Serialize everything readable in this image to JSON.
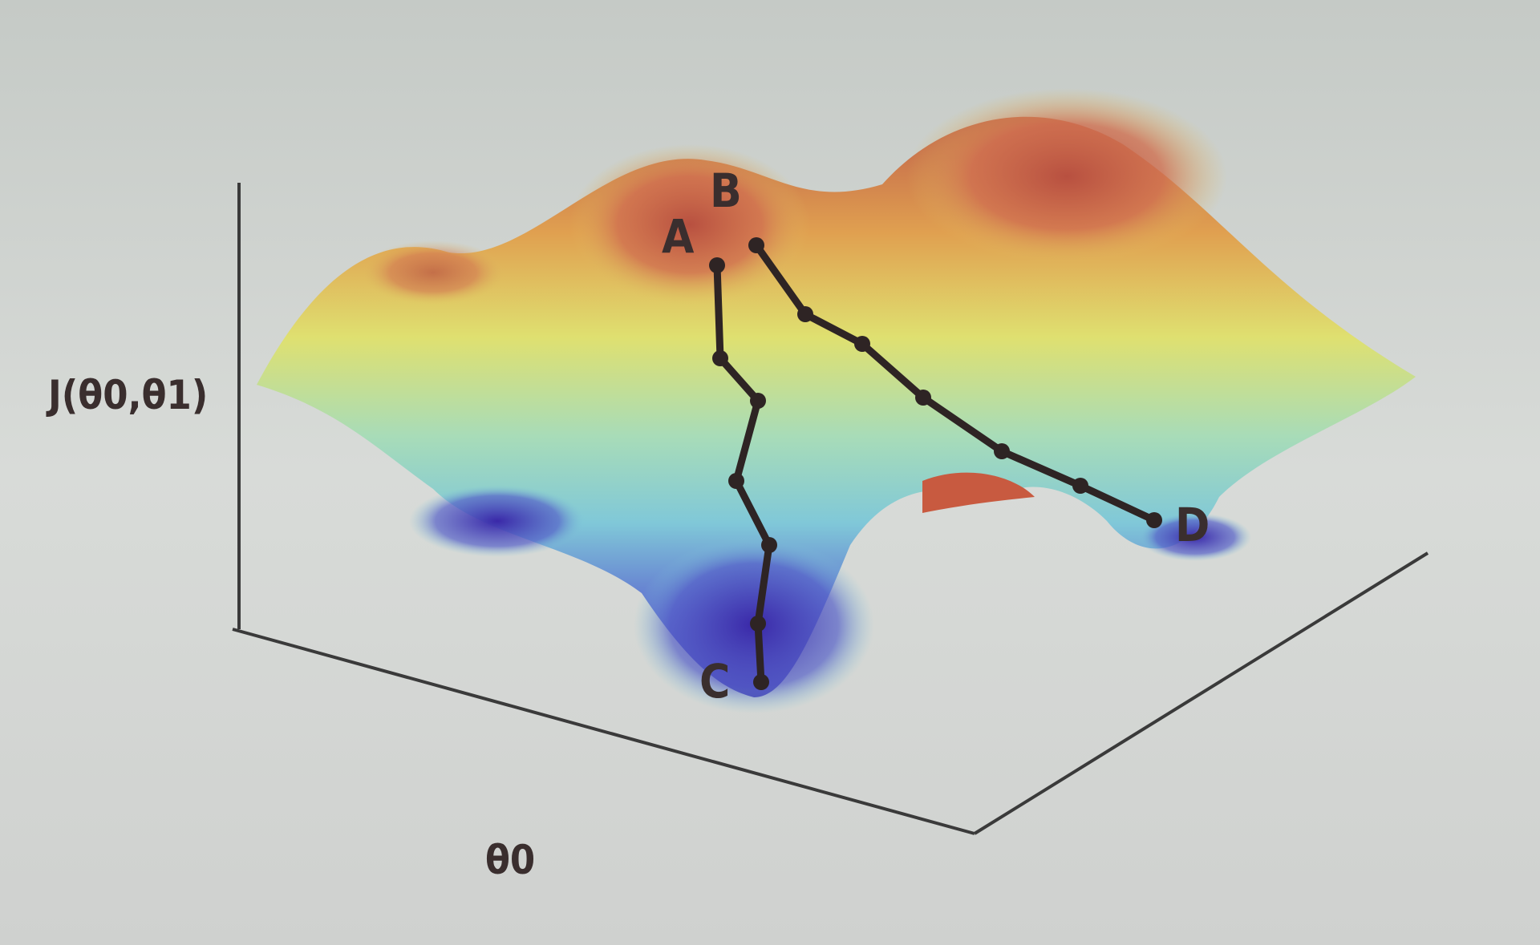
{
  "axes": {
    "z_label": "J(θ0,θ1)",
    "x_label": "θ0"
  },
  "points": [
    {
      "label": "A"
    },
    {
      "label": "B"
    },
    {
      "label": "C"
    },
    {
      "label": "D"
    }
  ]
}
